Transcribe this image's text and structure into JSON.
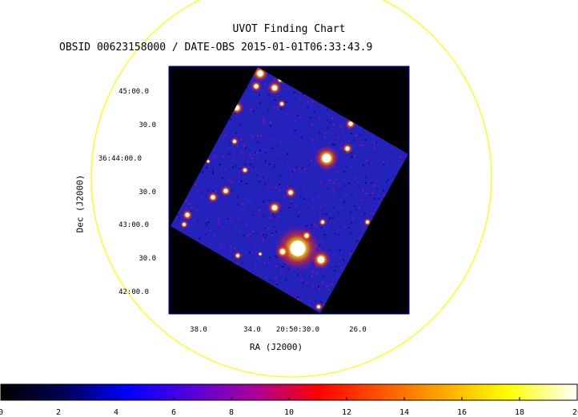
{
  "chart": {
    "title": "UVOT Finding Chart",
    "subtitle": "OBSID 00623158000 / DATE-OBS 2015-01-01T06:33:43.9",
    "ylabel": "Dec (J2000)",
    "xlabel": "RA (J2000)",
    "yticks": [
      "45:00.0",
      "30.0",
      "36:44:00.0",
      "30.0",
      "43:00.0",
      "30.0",
      "42:00.0"
    ],
    "xticks": [
      "38.0",
      "34.0",
      "20:50:30.0",
      "26.0"
    ],
    "colors": {
      "circle": "#ffff00",
      "frame": "#0000cc",
      "background": "#000000",
      "field": "#2020c0"
    }
  },
  "colorbar": {
    "range": [
      0,
      20
    ],
    "ticks": [
      "0",
      "2",
      "4",
      "6",
      "8",
      "10",
      "12",
      "14",
      "16",
      "18",
      "20"
    ],
    "colormap": [
      "#000000",
      "#000055",
      "#0000ff",
      "#5500dd",
      "#aa0099",
      "#ff0000",
      "#ff5500",
      "#ffaa00",
      "#ffff00",
      "#ffffff"
    ]
  }
}
